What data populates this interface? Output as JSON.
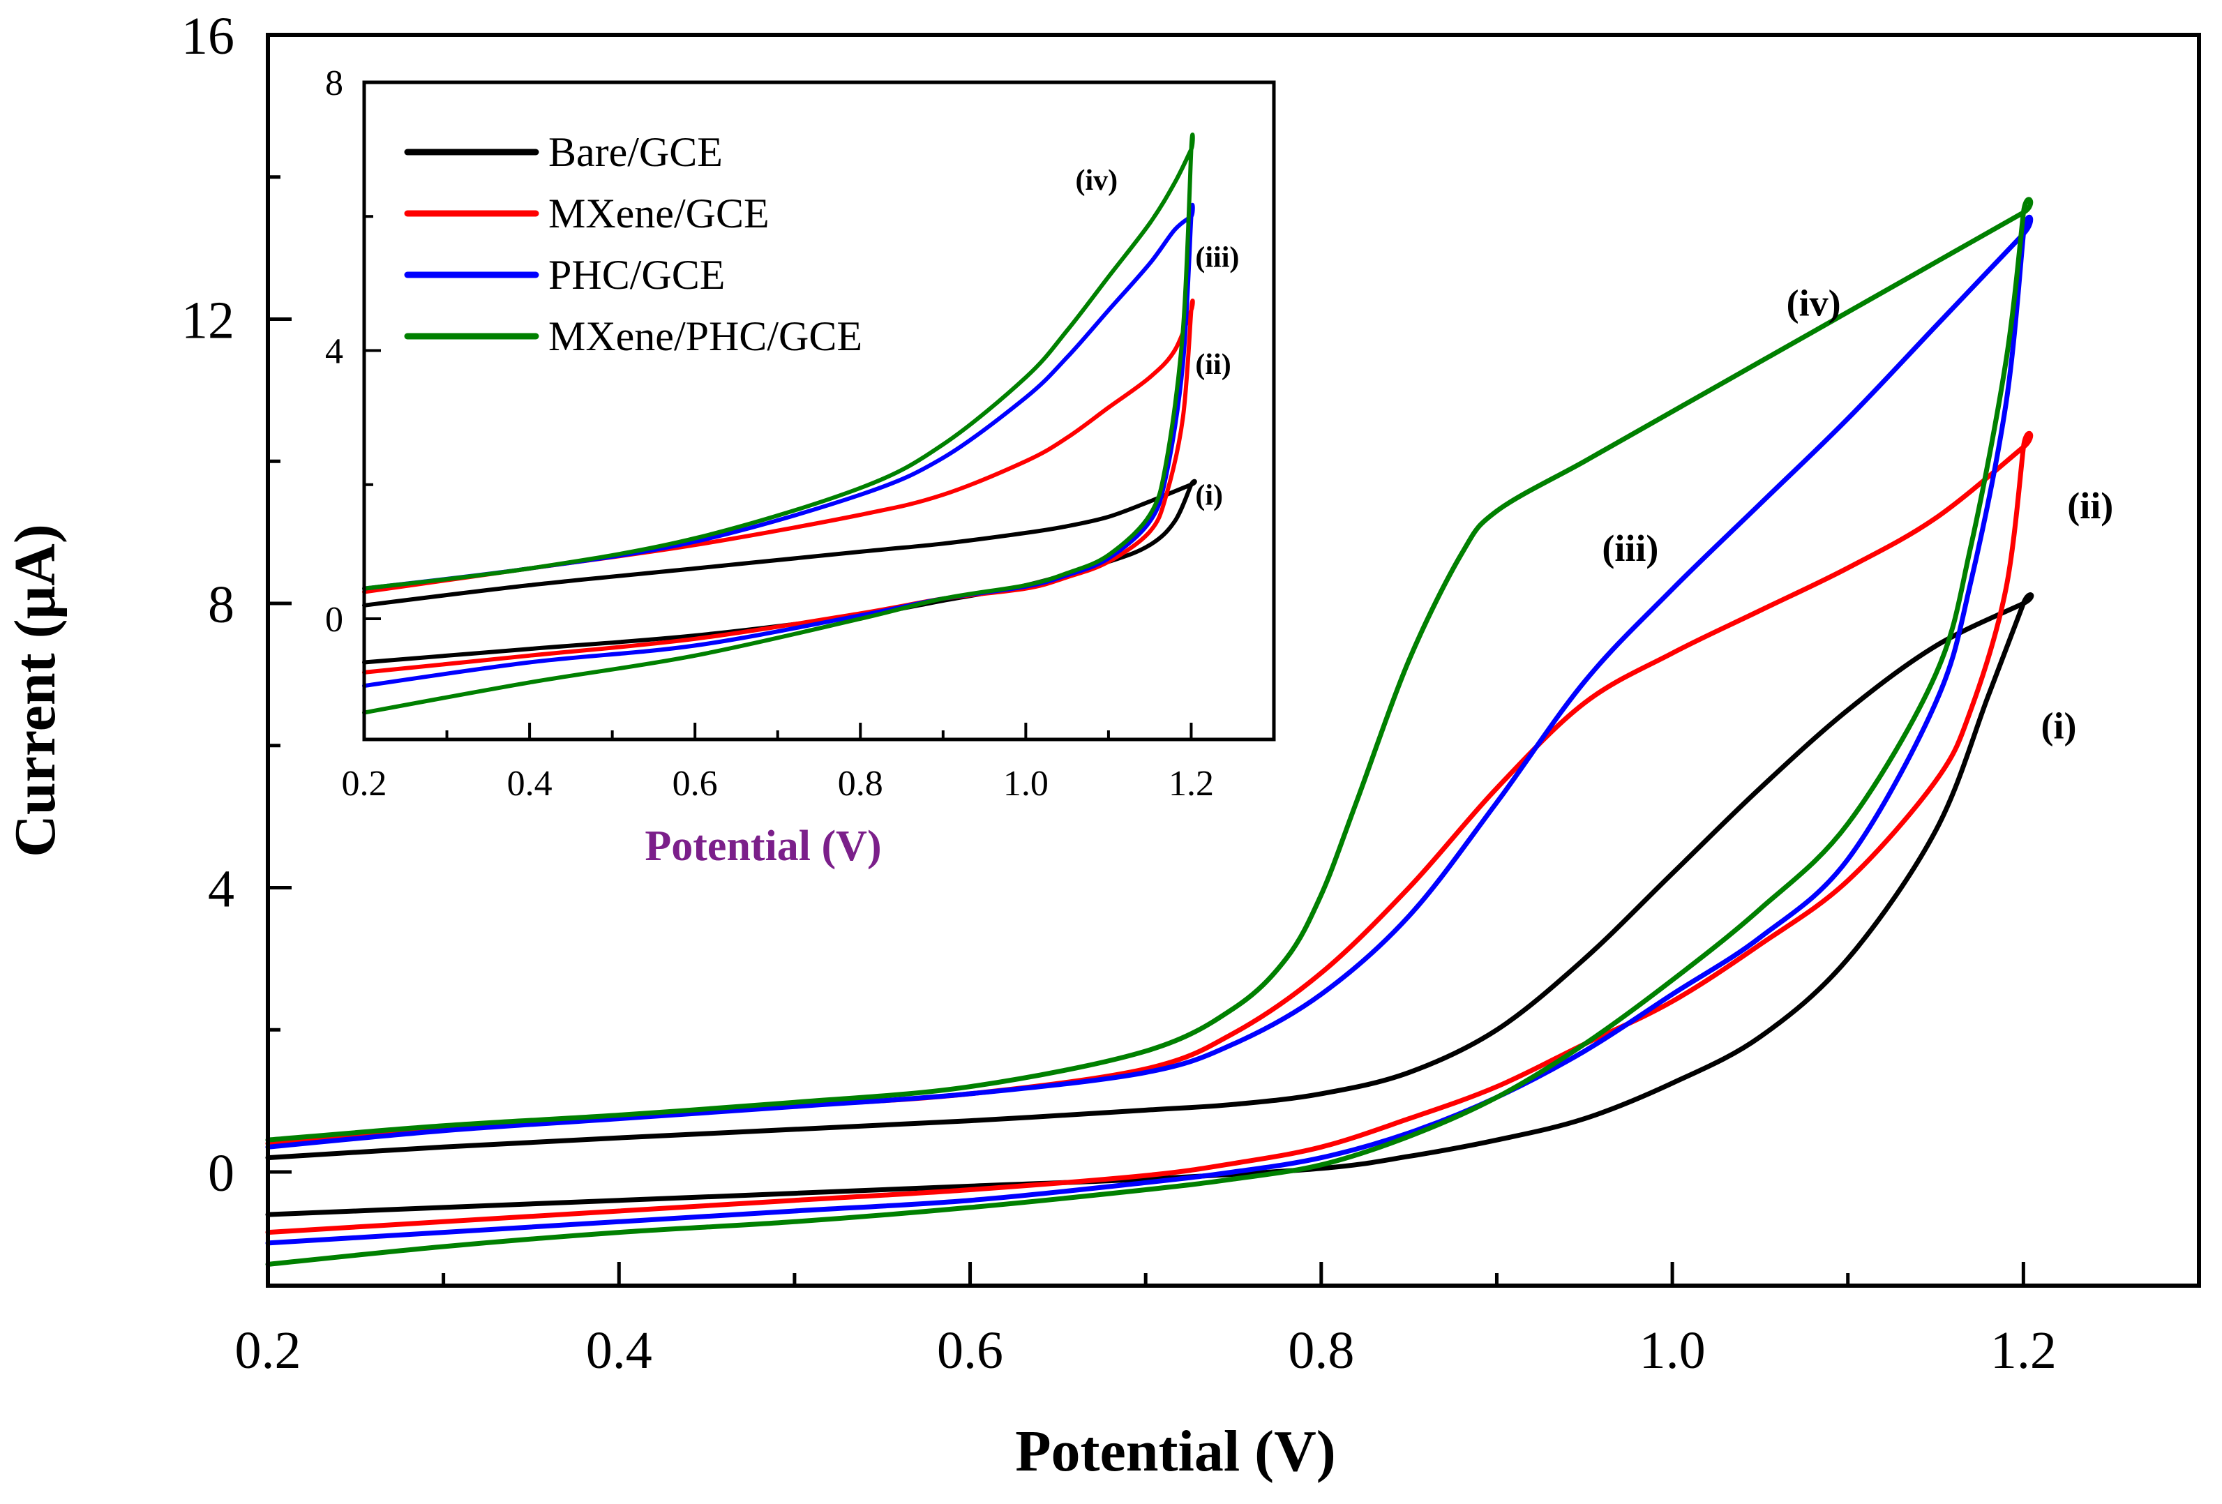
{
  "chart_data": [
    {
      "type": "line",
      "name": "main",
      "xlabel": "Potential (V)",
      "ylabel": "Current (μA)",
      "xlim": [
        0.2,
        1.3
      ],
      "ylim": [
        -1.6,
        16
      ],
      "xticks": [
        0.2,
        0.4,
        0.6,
        0.8,
        1.0,
        1.2
      ],
      "xtick_labels": [
        "0.2",
        "0.4",
        "0.6",
        "0.8",
        "1.0",
        "1.2"
      ],
      "yticks": [
        0,
        4,
        8,
        12,
        16
      ],
      "ytick_labels": [
        "0",
        "4",
        "8",
        "12",
        "16"
      ],
      "series": [
        {
          "name": "Bare/GCE",
          "label": "(i)",
          "label_at": [
            1.21,
            6.1
          ],
          "color": "#000000",
          "x": [
            0.2,
            0.3,
            0.4,
            0.5,
            0.6,
            0.7,
            0.75,
            0.8,
            0.85,
            0.9,
            0.95,
            1.0,
            1.05,
            1.1,
            1.15,
            1.2,
            1.2,
            1.18,
            1.15,
            1.1,
            1.05,
            1.0,
            0.95,
            0.9,
            0.85,
            0.8,
            0.7,
            0.6,
            0.5,
            0.4,
            0.3,
            0.2
          ],
          "y": [
            0.2,
            0.35,
            0.48,
            0.6,
            0.72,
            0.87,
            0.95,
            1.1,
            1.4,
            2.0,
            3.0,
            4.2,
            5.4,
            6.5,
            7.4,
            8.0,
            8.0,
            6.7,
            4.8,
            3.0,
            1.9,
            1.25,
            0.75,
            0.45,
            0.22,
            0.05,
            -0.1,
            -0.2,
            -0.3,
            -0.4,
            -0.5,
            -0.6
          ]
        },
        {
          "name": "MXene/GCE",
          "label": "(ii)",
          "label_at": [
            1.225,
            9.2
          ],
          "color": "#ff0000",
          "x": [
            0.2,
            0.3,
            0.4,
            0.5,
            0.6,
            0.7,
            0.75,
            0.8,
            0.85,
            0.9,
            0.95,
            1.0,
            1.05,
            1.1,
            1.15,
            1.2,
            1.2,
            1.19,
            1.17,
            1.15,
            1.1,
            1.05,
            1.0,
            0.95,
            0.9,
            0.85,
            0.8,
            0.75,
            0.7,
            0.6,
            0.5,
            0.4,
            0.3,
            0.2
          ],
          "y": [
            0.4,
            0.6,
            0.78,
            0.93,
            1.1,
            1.45,
            1.95,
            2.8,
            4.0,
            5.4,
            6.6,
            7.3,
            7.9,
            8.5,
            9.2,
            10.2,
            10.2,
            8.2,
            6.5,
            5.5,
            4.1,
            3.2,
            2.4,
            1.8,
            1.2,
            0.75,
            0.35,
            0.12,
            -0.05,
            -0.25,
            -0.4,
            -0.55,
            -0.7,
            -0.85
          ]
        },
        {
          "name": "PHC/GCE",
          "label": "(iii)",
          "label_at": [
            0.96,
            8.6
          ],
          "color": "#0000ff",
          "x": [
            0.2,
            0.3,
            0.4,
            0.5,
            0.6,
            0.7,
            0.75,
            0.8,
            0.85,
            0.9,
            0.95,
            1.0,
            1.05,
            1.1,
            1.15,
            1.2,
            1.2,
            1.19,
            1.17,
            1.15,
            1.1,
            1.05,
            1.0,
            0.95,
            0.9,
            0.85,
            0.8,
            0.75,
            0.7,
            0.6,
            0.5,
            0.4,
            0.3,
            0.2
          ],
          "y": [
            0.35,
            0.58,
            0.75,
            0.92,
            1.1,
            1.4,
            1.8,
            2.5,
            3.6,
            5.2,
            6.9,
            8.2,
            9.4,
            10.6,
            11.9,
            13.2,
            13.2,
            10.8,
            8.3,
            6.6,
            4.4,
            3.3,
            2.5,
            1.7,
            1.05,
            0.55,
            0.2,
            0.0,
            -0.15,
            -0.4,
            -0.55,
            -0.7,
            -0.85,
            -1.0
          ]
        },
        {
          "name": "MXene/PHC/GCE",
          "label": "(iv)",
          "label_at": [
            1.065,
            12.05
          ],
          "color": "#008000",
          "x": [
            0.2,
            0.3,
            0.4,
            0.5,
            0.6,
            0.7,
            0.75,
            0.78,
            0.8,
            0.82,
            0.85,
            0.88,
            0.9,
            0.95,
            1.0,
            1.05,
            1.1,
            1.15,
            1.2,
            1.2,
            1.19,
            1.17,
            1.15,
            1.1,
            1.05,
            1.0,
            0.95,
            0.9,
            0.85,
            0.8,
            0.75,
            0.7,
            0.6,
            0.5,
            0.4,
            0.3,
            0.2
          ],
          "y": [
            0.45,
            0.65,
            0.8,
            0.98,
            1.2,
            1.7,
            2.3,
            3.0,
            3.9,
            5.2,
            7.2,
            8.7,
            9.3,
            10.0,
            10.7,
            11.4,
            12.1,
            12.8,
            13.5,
            13.5,
            11.4,
            8.8,
            7.0,
            4.9,
            3.7,
            2.7,
            1.8,
            1.05,
            0.5,
            0.1,
            -0.1,
            -0.25,
            -0.5,
            -0.7,
            -0.85,
            -1.05,
            -1.3
          ]
        }
      ]
    },
    {
      "type": "line",
      "name": "inset",
      "xlabel": "Potential (V)",
      "xlabel_color": "#7b1f8a",
      "xlim": [
        0.2,
        1.3
      ],
      "ylim": [
        -1.8,
        8
      ],
      "xticks": [
        0.2,
        0.4,
        0.6,
        0.8,
        1.0,
        1.2
      ],
      "xtick_labels": [
        "0.2",
        "0.4",
        "0.6",
        "0.8",
        "1.0",
        "1.2"
      ],
      "yticks": [
        0,
        4,
        8
      ],
      "ytick_labels": [
        "0",
        "4",
        "8"
      ],
      "legend": {
        "position": "top-left",
        "entries": [
          "Bare/GCE",
          "MXene/GCE",
          "PHC/GCE",
          "MXene/PHC/GCE"
        ]
      },
      "series": [
        {
          "name": "Bare/GCE",
          "label": "(i)",
          "label_at": [
            1.205,
            1.7
          ],
          "color": "#000000",
          "x": [
            0.2,
            0.4,
            0.6,
            0.8,
            0.9,
            1.0,
            1.05,
            1.1,
            1.15,
            1.2,
            1.2,
            1.18,
            1.15,
            1.1,
            1.0,
            0.9,
            0.8,
            0.6,
            0.4,
            0.2
          ],
          "y": [
            0.2,
            0.5,
            0.75,
            1.0,
            1.12,
            1.28,
            1.38,
            1.52,
            1.75,
            2.0,
            2.0,
            1.45,
            1.1,
            0.85,
            0.5,
            0.27,
            0.05,
            -0.25,
            -0.45,
            -0.65
          ]
        },
        {
          "name": "MXene/GCE",
          "label": "(ii)",
          "label_at": [
            1.205,
            3.65
          ],
          "color": "#ff0000",
          "x": [
            0.2,
            0.4,
            0.6,
            0.8,
            0.9,
            1.0,
            1.05,
            1.1,
            1.15,
            1.18,
            1.2,
            1.2,
            1.19,
            1.17,
            1.15,
            1.1,
            1.05,
            1.0,
            0.9,
            0.8,
            0.6,
            0.4,
            0.2
          ],
          "y": [
            0.4,
            0.75,
            1.1,
            1.55,
            1.85,
            2.35,
            2.7,
            3.15,
            3.6,
            4.0,
            4.6,
            4.6,
            3.0,
            1.85,
            1.3,
            0.85,
            0.62,
            0.45,
            0.3,
            0.08,
            -0.3,
            -0.55,
            -0.8
          ]
        },
        {
          "name": "PHC/GCE",
          "label": "(iii)",
          "label_at": [
            1.205,
            5.25
          ],
          "color": "#0000ff",
          "x": [
            0.2,
            0.4,
            0.6,
            0.8,
            0.9,
            1.0,
            1.05,
            1.1,
            1.15,
            1.18,
            1.2,
            1.2,
            1.19,
            1.17,
            1.15,
            1.1,
            1.05,
            1.0,
            0.9,
            0.8,
            0.6,
            0.4,
            0.2
          ],
          "y": [
            0.45,
            0.75,
            1.15,
            1.85,
            2.4,
            3.3,
            3.9,
            4.6,
            5.3,
            5.8,
            6.0,
            6.0,
            3.8,
            2.15,
            1.45,
            0.9,
            0.65,
            0.48,
            0.3,
            0.05,
            -0.4,
            -0.65,
            -1.0
          ]
        },
        {
          "name": "MXene/PHC/GCE",
          "label": "(iv)",
          "label_at": [
            1.06,
            6.4
          ],
          "color": "#008000",
          "x": [
            0.2,
            0.4,
            0.6,
            0.8,
            0.9,
            1.0,
            1.05,
            1.1,
            1.15,
            1.18,
            1.2,
            1.2,
            1.19,
            1.17,
            1.15,
            1.1,
            1.05,
            1.0,
            0.9,
            0.8,
            0.6,
            0.4,
            0.2
          ],
          "y": [
            0.45,
            0.75,
            1.2,
            1.95,
            2.6,
            3.6,
            4.3,
            5.1,
            5.9,
            6.5,
            7.0,
            7.0,
            4.3,
            2.35,
            1.55,
            0.95,
            0.68,
            0.5,
            0.3,
            0.0,
            -0.55,
            -0.95,
            -1.4
          ]
        }
      ]
    }
  ]
}
